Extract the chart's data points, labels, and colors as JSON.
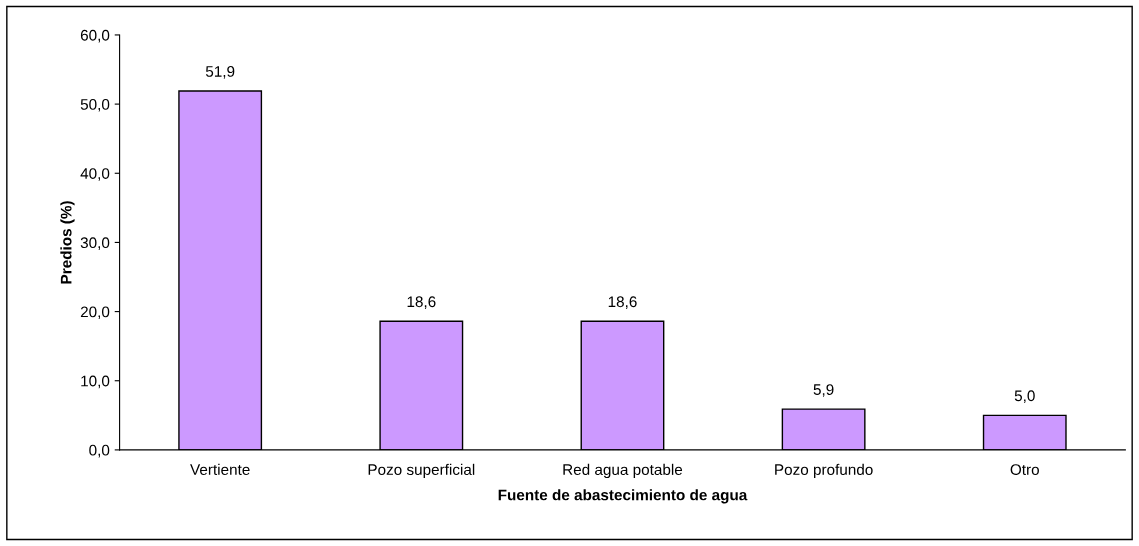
{
  "chart_data": {
    "type": "bar",
    "xlabel": "Fuente de abastecimiento de agua",
    "ylabel": "Predios (%)",
    "categories": [
      "Vertiente",
      "Pozo superficial",
      "Red agua potable",
      "Pozo profundo",
      "Otro"
    ],
    "values": [
      51.9,
      18.6,
      18.6,
      5.9,
      5.0
    ],
    "value_labels": [
      "51,9",
      "18,6",
      "18,6",
      "5,9",
      "5,0"
    ],
    "color": "#cc99ff",
    "ylim": [
      0,
      60
    ],
    "yticks": [
      {
        "value": 0,
        "label": "0,0"
      },
      {
        "value": 10,
        "label": "10,0"
      },
      {
        "value": 20,
        "label": "20,0"
      },
      {
        "value": 30,
        "label": "30,0"
      },
      {
        "value": 40,
        "label": "40,0"
      },
      {
        "value": 50,
        "label": "50,0"
      },
      {
        "value": 60,
        "label": "60,0"
      }
    ],
    "grid": false,
    "legend": false
  }
}
